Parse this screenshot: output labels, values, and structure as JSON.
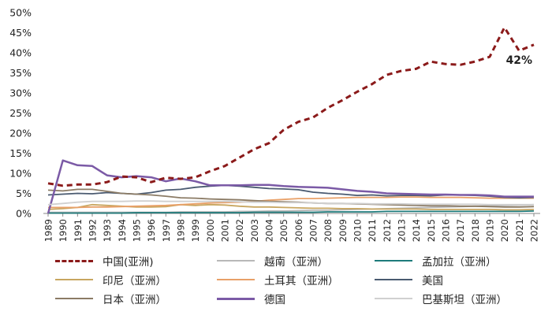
{
  "chart_data": {
    "type": "line",
    "title": "",
    "xlabel": "",
    "ylabel": "",
    "ylim": [
      0,
      50
    ],
    "yticks": [
      "0%",
      "5%",
      "10%",
      "15%",
      "20%",
      "25%",
      "30%",
      "35%",
      "40%",
      "45%",
      "50%"
    ],
    "categories": [
      "1989",
      "1990",
      "1991",
      "1992",
      "1993",
      "1994",
      "1995",
      "1996",
      "1997",
      "1998",
      "1999",
      "2000",
      "2001",
      "2002",
      "2003",
      "2004",
      "2005",
      "2006",
      "2007",
      "2008",
      "2009",
      "2010",
      "2011",
      "2012",
      "2013",
      "2014",
      "2015",
      "2016",
      "2017",
      "2018",
      "2019",
      "2020",
      "2021",
      "2022"
    ],
    "series": [
      {
        "name": "中国(亚洲)",
        "color": "#8B1A1A",
        "dash": "dashed",
        "width": 3,
        "values": [
          7.5,
          6.9,
          7.2,
          7.2,
          7.8,
          9.2,
          9.0,
          7.8,
          8.9,
          8.6,
          9.0,
          10.5,
          11.8,
          13.9,
          16.0,
          17.5,
          20.8,
          22.8,
          23.9,
          26.3,
          28.2,
          30.3,
          32.2,
          34.5,
          35.5,
          36.0,
          37.8,
          37.2,
          37.0,
          37.8,
          39.0,
          46.3,
          40.5,
          42.0
        ]
      },
      {
        "name": "越南（亚洲）",
        "color": "#B8B8B8",
        "dash": "solid",
        "width": 1.8,
        "values": [
          0.3,
          0.3,
          0.3,
          0.3,
          0.3,
          0.3,
          0.3,
          0.3,
          0.3,
          0.4,
          0.4,
          0.4,
          0.4,
          0.5,
          0.5,
          0.6,
          0.6,
          0.7,
          0.8,
          0.8,
          0.9,
          1.0,
          1.1,
          1.2,
          1.3,
          1.4,
          1.5,
          1.6,
          1.7,
          1.8,
          1.9,
          2.0,
          2.1,
          2.2
        ]
      },
      {
        "name": "孟加拉（亚洲）",
        "color": "#1E7B7B",
        "dash": "solid",
        "width": 1.8,
        "values": [
          0.1,
          0.1,
          0.1,
          0.1,
          0.1,
          0.1,
          0.2,
          0.2,
          0.2,
          0.2,
          0.2,
          0.2,
          0.2,
          0.2,
          0.3,
          0.3,
          0.3,
          0.3,
          0.3,
          0.4,
          0.4,
          0.4,
          0.4,
          0.5,
          0.5,
          0.5,
          0.5,
          0.5,
          0.5,
          0.5,
          0.5,
          0.5,
          0.5,
          0.6
        ]
      },
      {
        "name": "印尼（亚洲）",
        "color": "#C8A660",
        "dash": "solid",
        "width": 1.8,
        "values": [
          1.0,
          1.2,
          1.5,
          2.2,
          2.0,
          1.8,
          1.6,
          1.6,
          1.7,
          2.2,
          2.0,
          2.2,
          2.1,
          1.8,
          1.6,
          1.6,
          1.5,
          1.4,
          1.3,
          1.3,
          1.2,
          1.2,
          1.1,
          1.1,
          1.1,
          1.1,
          1.0,
          1.0,
          1.0,
          1.0,
          1.0,
          0.9,
          0.9,
          1.0
        ]
      },
      {
        "name": "土耳其（亚洲）",
        "color": "#E8A068",
        "dash": "solid",
        "width": 1.8,
        "values": [
          1.5,
          1.5,
          1.5,
          1.6,
          1.6,
          1.7,
          1.8,
          1.9,
          2.0,
          2.2,
          2.4,
          2.6,
          2.7,
          2.8,
          3.0,
          3.3,
          3.5,
          3.7,
          3.7,
          3.8,
          3.9,
          4.0,
          4.0,
          4.0,
          4.1,
          4.1,
          4.0,
          4.0,
          4.0,
          3.9,
          3.8,
          3.8,
          3.8,
          3.8
        ]
      },
      {
        "name": "美国",
        "color": "#4A5A70",
        "dash": "solid",
        "width": 1.8,
        "values": [
          4.6,
          4.8,
          5.0,
          4.9,
          5.2,
          5.0,
          4.8,
          5.2,
          5.8,
          6.0,
          6.5,
          6.8,
          7.0,
          6.8,
          6.5,
          6.2,
          6.1,
          5.9,
          5.3,
          5.0,
          4.8,
          4.5,
          4.6,
          4.4,
          4.5,
          4.5,
          4.4,
          4.6,
          4.6,
          4.5,
          4.3,
          4.0,
          3.9,
          4.0
        ]
      },
      {
        "name": "日本（亚洲）",
        "color": "#8B7B65",
        "dash": "solid",
        "width": 1.8,
        "values": [
          5.8,
          5.6,
          6.0,
          6.0,
          5.5,
          5.0,
          4.8,
          4.6,
          4.3,
          3.9,
          3.8,
          3.6,
          3.5,
          3.4,
          3.2,
          3.0,
          2.9,
          2.8,
          2.6,
          2.5,
          2.5,
          2.4,
          2.3,
          2.2,
          2.1,
          2.0,
          1.9,
          1.9,
          1.8,
          1.8,
          1.7,
          1.6,
          1.6,
          1.7
        ]
      },
      {
        "name": "德国",
        "color": "#7B5AA6",
        "dash": "solid",
        "width": 2.5,
        "values": [
          0.0,
          13.2,
          12.0,
          11.8,
          9.5,
          9.0,
          9.3,
          9.0,
          8.0,
          8.7,
          8.0,
          7.0,
          7.0,
          7.0,
          7.1,
          7.1,
          6.8,
          6.6,
          6.5,
          6.4,
          6.0,
          5.6,
          5.4,
          5.0,
          4.9,
          4.8,
          4.7,
          4.7,
          4.6,
          4.6,
          4.5,
          4.2,
          4.2,
          4.2
        ]
      },
      {
        "name": "巴基斯坦（亚洲）",
        "color": "#D0D0D0",
        "dash": "solid",
        "width": 1.8,
        "values": [
          2.2,
          2.5,
          2.8,
          3.0,
          3.0,
          3.0,
          3.1,
          3.1,
          3.0,
          3.0,
          3.0,
          3.0,
          3.0,
          2.9,
          2.8,
          2.8,
          2.7,
          2.7,
          2.6,
          2.5,
          2.5,
          2.5,
          2.4,
          2.4,
          2.4,
          2.3,
          2.3,
          2.3,
          2.3,
          2.3,
          2.2,
          2.2,
          2.2,
          2.2
        ]
      }
    ],
    "annotations": [
      {
        "text": "42%"
      }
    ],
    "legend_position": "bottom"
  }
}
